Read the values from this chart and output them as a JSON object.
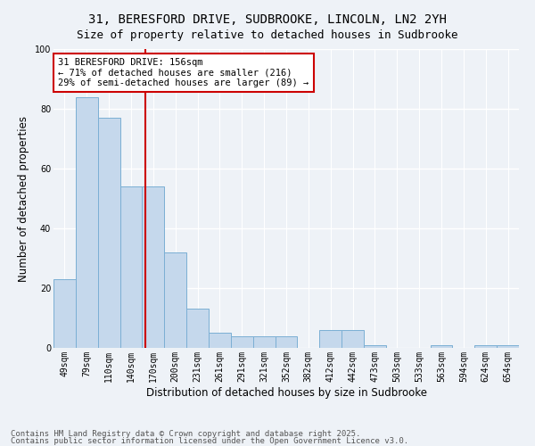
{
  "title": "31, BERESFORD DRIVE, SUDBROOKE, LINCOLN, LN2 2YH",
  "subtitle": "Size of property relative to detached houses in Sudbrooke",
  "xlabel": "Distribution of detached houses by size in Sudbrooke",
  "ylabel": "Number of detached properties",
  "categories": [
    "49sqm",
    "79sqm",
    "110sqm",
    "140sqm",
    "170sqm",
    "200sqm",
    "231sqm",
    "261sqm",
    "291sqm",
    "321sqm",
    "352sqm",
    "382sqm",
    "412sqm",
    "442sqm",
    "473sqm",
    "503sqm",
    "533sqm",
    "563sqm",
    "594sqm",
    "624sqm",
    "654sqm"
  ],
  "values": [
    23,
    84,
    77,
    54,
    54,
    32,
    13,
    5,
    4,
    4,
    4,
    0,
    6,
    6,
    1,
    0,
    0,
    1,
    0,
    1,
    1
  ],
  "bar_color": "#c5d8ec",
  "bar_edge_color": "#7bafd4",
  "ylim": [
    0,
    100
  ],
  "yticks": [
    0,
    20,
    40,
    60,
    80,
    100
  ],
  "vline_x": 3.65,
  "vline_color": "#cc0000",
  "annotation_text": "31 BERESFORD DRIVE: 156sqm\n← 71% of detached houses are smaller (216)\n29% of semi-detached houses are larger (89) →",
  "annotation_box_color": "#ffffff",
  "annotation_box_edge": "#cc0000",
  "footnote1": "Contains HM Land Registry data © Crown copyright and database right 2025.",
  "footnote2": "Contains public sector information licensed under the Open Government Licence v3.0.",
  "background_color": "#eef2f7",
  "title_fontsize": 10,
  "subtitle_fontsize": 9,
  "label_fontsize": 8.5,
  "tick_fontsize": 7,
  "annotation_fontsize": 7.5,
  "footnote_fontsize": 6.5
}
